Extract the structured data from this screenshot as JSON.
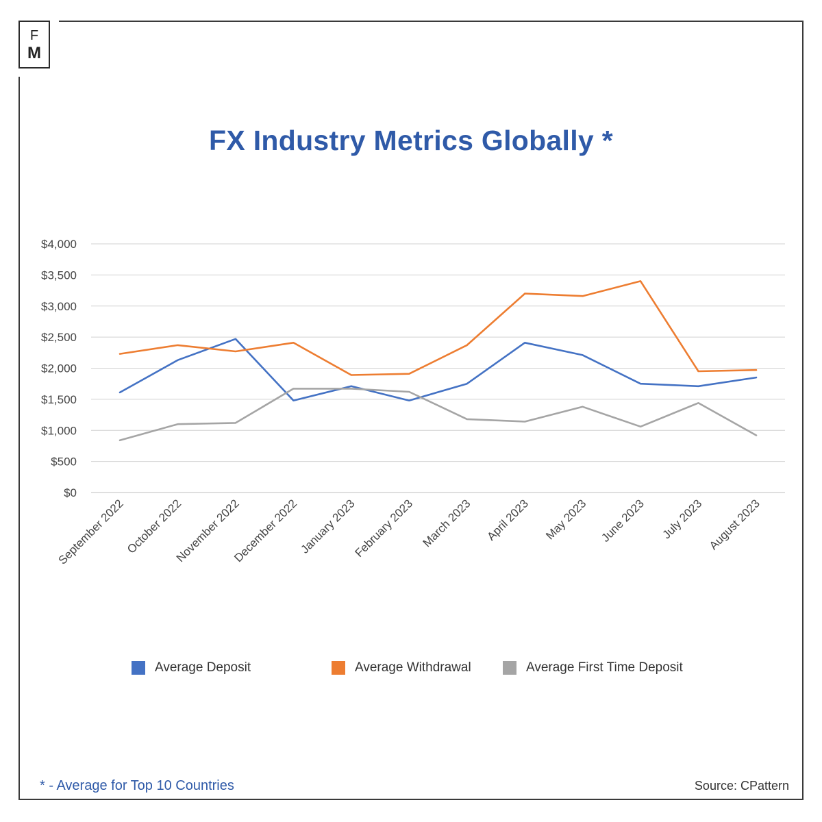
{
  "logo": {
    "top_letter": "F",
    "bottom_letter": "M"
  },
  "chart_data": {
    "type": "line",
    "title": "FX Industry Metrics Globally *",
    "categories": [
      "September 2022",
      "October 2022",
      "November 2022",
      "December 2022",
      "January 2023",
      "February 2023",
      "March 2023",
      "April 2023",
      "May 2023",
      "June 2023",
      "July 2023",
      "August 2023"
    ],
    "ylim": [
      0,
      4000
    ],
    "yticks": [
      0,
      500,
      1000,
      1500,
      2000,
      2500,
      3000,
      3500,
      4000
    ],
    "ytick_labels": [
      "$0",
      "$500",
      "$1,000",
      "$1,500",
      "$2,000",
      "$2,500",
      "$3,000",
      "$3,500",
      "$4,000"
    ],
    "grid": true,
    "legend_position": "bottom",
    "series": [
      {
        "name": "Average Deposit",
        "color": "#4472c4",
        "values": [
          1610,
          2130,
          2470,
          1480,
          1710,
          1480,
          1750,
          2410,
          2210,
          1750,
          1710,
          1850
        ]
      },
      {
        "name": "Average Withdrawal",
        "color": "#ed7d31",
        "values": [
          2230,
          2370,
          2270,
          2410,
          1890,
          1910,
          2370,
          3200,
          3160,
          3400,
          1950,
          1970
        ]
      },
      {
        "name": "Average First Time Deposit",
        "color": "#a5a5a5",
        "values": [
          840,
          1100,
          1120,
          1670,
          1670,
          1620,
          1180,
          1140,
          1380,
          1060,
          1440,
          920
        ]
      }
    ]
  },
  "footnote": "* - Average for Top 10 Countries",
  "source": "Source: CPattern"
}
